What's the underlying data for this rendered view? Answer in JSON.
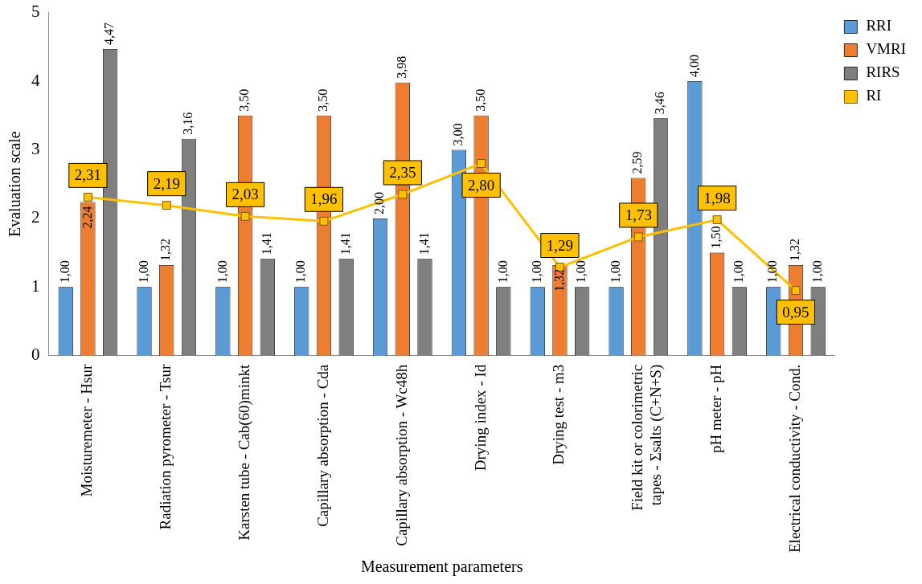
{
  "chart_data": {
    "type": "bar",
    "xlabel": "Measurement parameters",
    "ylabel": "Evaluation scale",
    "categories": [
      "Moisturemeter - Hsur",
      "Radiation pyrometer - Tsur",
      "Karsten tube - Cab(60)minkt",
      "Capillary absorption - Cda",
      "Capillary absorption - Wc48h",
      "Drying index - Id",
      "Drying test - m3",
      "Field kit or colorimetric tapes - Σsalts (C+N+S)",
      "pH meter - pH",
      "Electrical conductivity - Cond."
    ],
    "series": [
      {
        "name": "RRI",
        "color": "#5b9bd5",
        "values": [
          1,
          1,
          1,
          1,
          2,
          3,
          1,
          1,
          4,
          1
        ],
        "value_labels": [
          "1,00",
          "1,00",
          "1,00",
          "1,00",
          "2,00",
          "3,00",
          "1,00",
          "1,00",
          "4,00",
          "1,00"
        ]
      },
      {
        "name": "VMRI",
        "color": "#ed7d31",
        "values": [
          2.24,
          1.32,
          3.5,
          3.5,
          3.98,
          3.5,
          1.32,
          2.59,
          1.5,
          1.32
        ],
        "value_labels": [
          "2,24",
          "1,32",
          "3,50",
          "3,50",
          "3,98",
          "3,50",
          "1,32",
          "2,59",
          "1,50",
          "1,32"
        ]
      },
      {
        "name": "RIRS",
        "color": "#7f7f7f",
        "values": [
          4.47,
          3.16,
          1.41,
          1.41,
          1.41,
          1,
          1,
          3.46,
          1,
          1
        ],
        "value_labels": [
          "4,47",
          "3,16",
          "1,41",
          "1,41",
          "1,41",
          "1,00",
          "1,00",
          "3,46",
          "1,00",
          "1,00"
        ]
      },
      {
        "name": "RI",
        "type": "line",
        "color": "#ffc000",
        "values": [
          2.31,
          2.19,
          2.03,
          1.96,
          2.35,
          2.8,
          1.29,
          1.73,
          1.98,
          0.95
        ],
        "value_labels": [
          "2,31",
          "2,19",
          "2,03",
          "1,96",
          "2,35",
          "2,80",
          "1,29",
          "1,73",
          "1,98",
          "0,95"
        ]
      }
    ],
    "ylim": [
      0,
      5
    ],
    "yticks": [
      0,
      1,
      2,
      3,
      4,
      5
    ],
    "grid": false,
    "legend": "top right",
    "marker": "square"
  }
}
